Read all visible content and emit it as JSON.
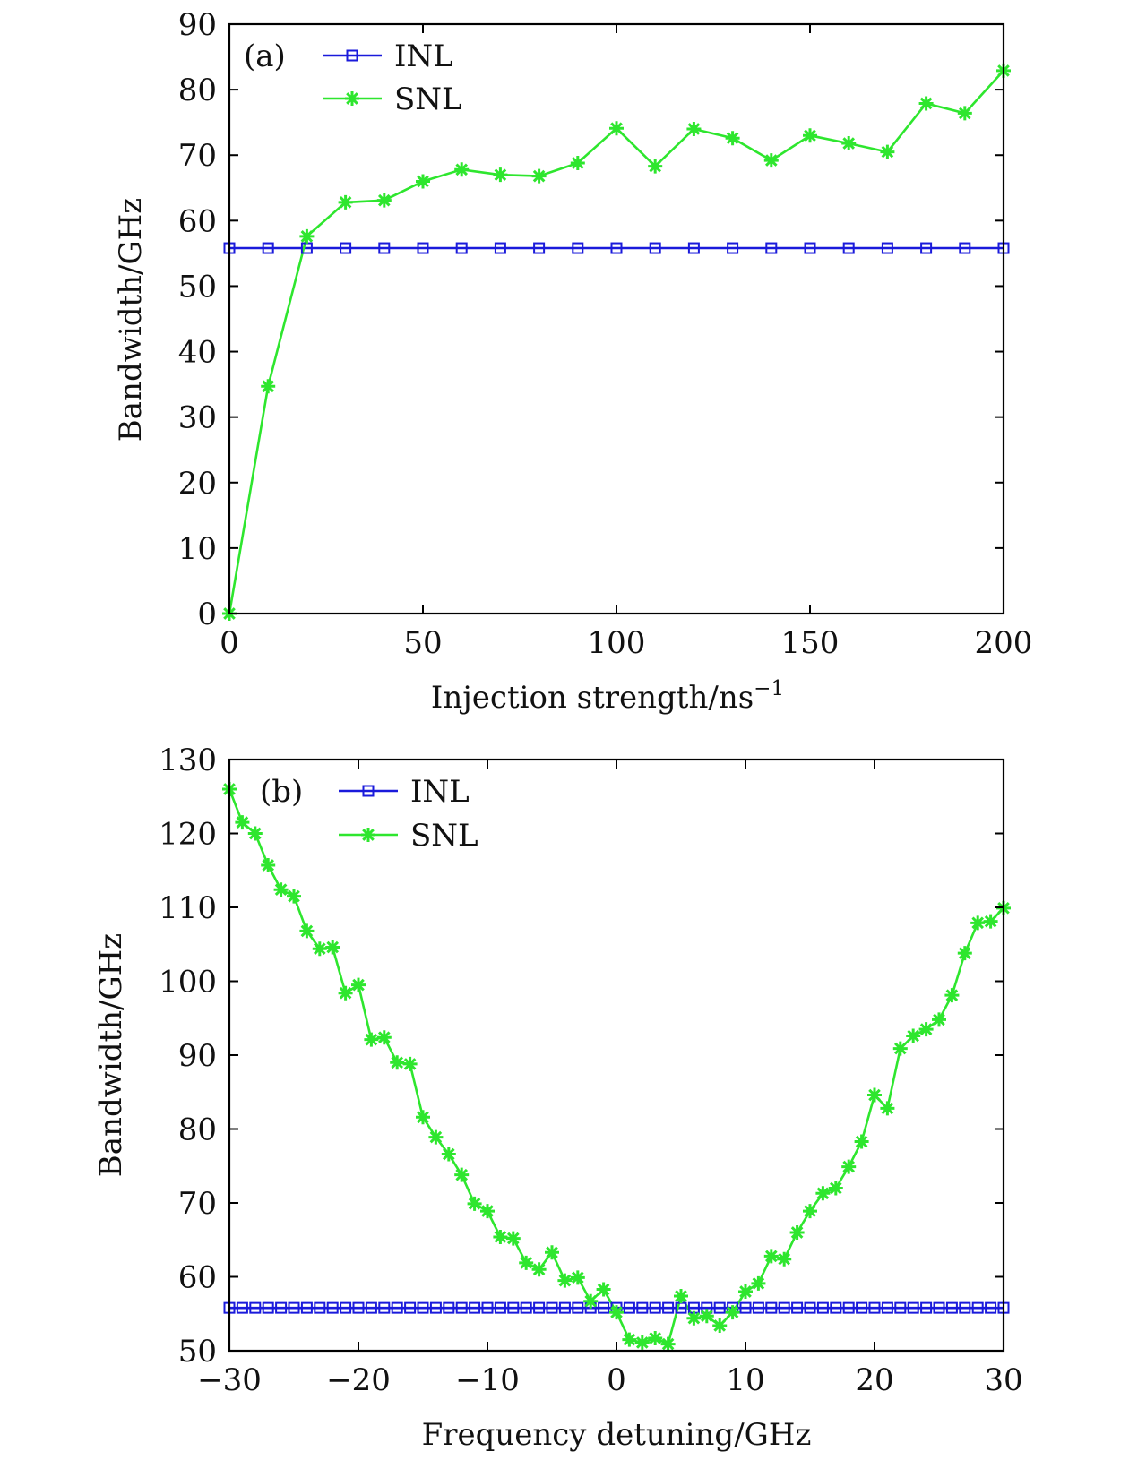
{
  "chart_data": [
    {
      "type": "line",
      "panel_label": "(a)",
      "xlabel": "Injection strength/ns",
      "xlabel_sup": "−1",
      "ylabel": "Bandwidth/GHz",
      "xlim": [
        0,
        200
      ],
      "ylim": [
        0,
        90
      ],
      "xticks": [
        0,
        50,
        100,
        150,
        200
      ],
      "xtick_labels": [
        "0",
        "50",
        "100",
        "150",
        "200"
      ],
      "yticks": [
        0,
        10,
        20,
        30,
        40,
        50,
        60,
        70,
        80,
        90
      ],
      "ytick_labels": [
        "0",
        "10",
        "20",
        "30",
        "40",
        "50",
        "60",
        "70",
        "80",
        "90"
      ],
      "legend_position": "top-left",
      "series": [
        {
          "name": "INL",
          "color": "#1a1adb",
          "marker": "square",
          "x": [
            0,
            10,
            20,
            30,
            40,
            50,
            60,
            70,
            80,
            90,
            100,
            110,
            120,
            130,
            140,
            150,
            160,
            170,
            180,
            190,
            200
          ],
          "values": [
            55.8,
            55.8,
            55.8,
            55.8,
            55.8,
            55.8,
            55.8,
            55.8,
            55.8,
            55.8,
            55.8,
            55.8,
            55.8,
            55.8,
            55.8,
            55.8,
            55.8,
            55.8,
            55.8,
            55.8,
            55.8
          ]
        },
        {
          "name": "SNL",
          "color": "#2ee62e",
          "marker": "asterisk",
          "x": [
            0,
            10,
            20,
            30,
            40,
            50,
            60,
            70,
            80,
            90,
            100,
            110,
            120,
            130,
            140,
            150,
            160,
            170,
            180,
            190,
            200
          ],
          "values": [
            0,
            34.7,
            57.6,
            62.8,
            63.1,
            66.0,
            67.8,
            67.0,
            66.8,
            68.8,
            74.1,
            68.3,
            74.0,
            72.6,
            69.2,
            73.0,
            71.8,
            70.5,
            77.9,
            76.4,
            82.9
          ]
        }
      ]
    },
    {
      "type": "line",
      "panel_label": "(b)",
      "xlabel": "Frequency detuning/GHz",
      "ylabel": "Bandwidth/GHz",
      "xlim": [
        -30,
        30
      ],
      "ylim": [
        50,
        130
      ],
      "xticks": [
        -30,
        -20,
        -10,
        0,
        10,
        20,
        30
      ],
      "xtick_labels": [
        "−30",
        "−20",
        "−10",
        "0",
        "10",
        "20",
        "30"
      ],
      "yticks": [
        50,
        60,
        70,
        80,
        90,
        100,
        110,
        120,
        130
      ],
      "ytick_labels": [
        "50",
        "60",
        "70",
        "80",
        "90",
        "100",
        "110",
        "120",
        "130"
      ],
      "legend_position": "top-left",
      "series": [
        {
          "name": "INL",
          "color": "#1a1adb",
          "marker": "square",
          "x": [
            -30,
            -29,
            -28,
            -27,
            -26,
            -25,
            -24,
            -23,
            -22,
            -21,
            -20,
            -19,
            -18,
            -17,
            -16,
            -15,
            -14,
            -13,
            -12,
            -11,
            -10,
            -9,
            -8,
            -7,
            -6,
            -5,
            -4,
            -3,
            -2,
            -1,
            0,
            1,
            2,
            3,
            4,
            5,
            6,
            7,
            8,
            9,
            10,
            11,
            12,
            13,
            14,
            15,
            16,
            17,
            18,
            19,
            20,
            21,
            22,
            23,
            24,
            25,
            26,
            27,
            28,
            29,
            30
          ],
          "values": [
            55.8,
            55.8,
            55.8,
            55.8,
            55.8,
            55.8,
            55.8,
            55.8,
            55.8,
            55.8,
            55.8,
            55.8,
            55.8,
            55.8,
            55.8,
            55.8,
            55.8,
            55.8,
            55.8,
            55.8,
            55.8,
            55.8,
            55.8,
            55.8,
            55.8,
            55.8,
            55.8,
            55.8,
            55.8,
            55.8,
            55.8,
            55.8,
            55.8,
            55.8,
            55.8,
            55.8,
            55.8,
            55.8,
            55.8,
            55.8,
            55.8,
            55.8,
            55.8,
            55.8,
            55.8,
            55.8,
            55.8,
            55.8,
            55.8,
            55.8,
            55.8,
            55.8,
            55.8,
            55.8,
            55.8,
            55.8,
            55.8,
            55.8,
            55.8,
            55.8,
            55.8
          ]
        },
        {
          "name": "SNL",
          "color": "#2ee62e",
          "marker": "asterisk",
          "x": [
            -30,
            -29,
            -28,
            -27,
            -26,
            -25,
            -24,
            -23,
            -22,
            -21,
            -20,
            -19,
            -18,
            -17,
            -16,
            -15,
            -14,
            -13,
            -12,
            -11,
            -10,
            -9,
            -8,
            -7,
            -6,
            -5,
            -4,
            -3,
            -2,
            -1,
            0,
            1,
            2,
            3,
            4,
            5,
            6,
            7,
            8,
            9,
            10,
            11,
            12,
            13,
            14,
            15,
            16,
            17,
            18,
            19,
            20,
            21,
            22,
            23,
            24,
            25,
            26,
            27,
            28,
            29,
            30
          ],
          "values": [
            126.0,
            121.5,
            120.0,
            115.7,
            112.4,
            111.5,
            106.8,
            104.4,
            104.6,
            98.4,
            99.5,
            92.1,
            92.4,
            89.0,
            88.8,
            81.6,
            78.9,
            76.6,
            73.8,
            69.9,
            68.9,
            65.4,
            65.2,
            61.9,
            61.0,
            63.3,
            59.5,
            59.9,
            56.7,
            58.3,
            55.2,
            51.5,
            51.1,
            51.7,
            50.9,
            57.4,
            54.4,
            54.7,
            53.4,
            55.2,
            58.0,
            59.1,
            62.8,
            62.4,
            66.0,
            68.9,
            71.3,
            72.0,
            74.9,
            78.3,
            84.6,
            82.8,
            90.9,
            92.6,
            93.5,
            94.8,
            98.1,
            103.8,
            107.9,
            108.1,
            109.9
          ]
        }
      ]
    }
  ]
}
